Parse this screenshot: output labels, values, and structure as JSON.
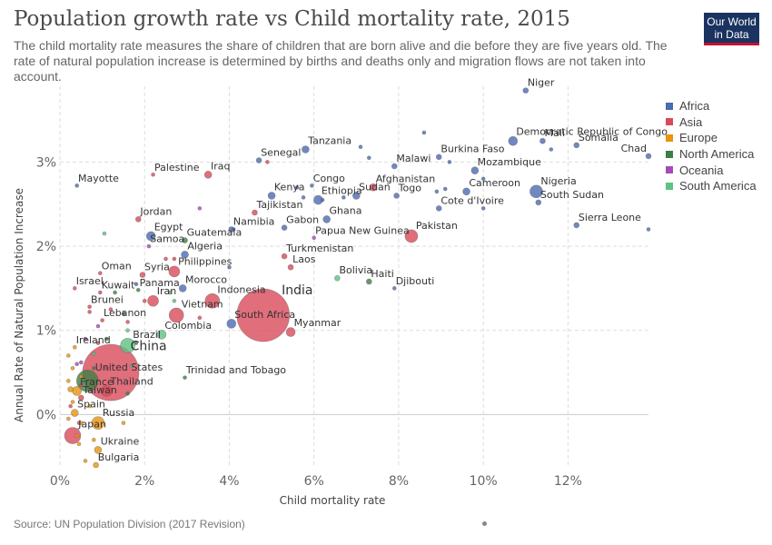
{
  "title": "Population growth rate vs Child mortality rate, 2015",
  "subtitle": "The child mortality rate measures the share of children that are born alive and die before they are five years old. The rate of natural population increase is determined by births and deaths only and migration flows are not taken into account.",
  "logo": {
    "line1": "Our World",
    "line2": "in Data",
    "bg": "#1a3360",
    "accent": "#c8102e"
  },
  "source": "Source: UN Population Division (2017 Revision)",
  "chart_data": {
    "type": "scatter",
    "xlabel": "Child mortality rate",
    "ylabel": "Annual Rate of Natural Population Increase",
    "xlim": [
      0,
      13.9
    ],
    "ylim": [
      -0.6,
      3.9
    ],
    "x_ticks": [
      0,
      2,
      4,
      6,
      8,
      10,
      12
    ],
    "y_ticks": [
      0,
      1,
      2,
      3
    ],
    "x_tick_labels": [
      "0%",
      "2%",
      "4%",
      "6%",
      "8%",
      "10%",
      "12%"
    ],
    "y_tick_labels": [
      "0%",
      "1%",
      "2%",
      "3%"
    ],
    "grid": true,
    "legend": {
      "position": "right",
      "items": [
        {
          "name": "Africa",
          "color": "#4c6ab1"
        },
        {
          "name": "Asia",
          "color": "#d84a5a"
        },
        {
          "name": "Europe",
          "color": "#e8940c"
        },
        {
          "name": "North America",
          "color": "#3e7f43"
        },
        {
          "name": "Oceania",
          "color": "#a54ab8"
        },
        {
          "name": "South America",
          "color": "#5ec282"
        }
      ]
    },
    "points": [
      {
        "label": "Niger",
        "region": "Africa",
        "x": 11.0,
        "y": 3.85,
        "size": 3
      },
      {
        "label": "Democratic Republic of Congo",
        "region": "Africa",
        "x": 10.7,
        "y": 3.25,
        "size": 5
      },
      {
        "label": "Mali",
        "region": "Africa",
        "x": 11.4,
        "y": 3.25,
        "size": 3
      },
      {
        "label": "Somalia",
        "region": "Africa",
        "x": 12.2,
        "y": 3.2,
        "size": 3
      },
      {
        "label": "Chad",
        "region": "Africa",
        "x": 13.9,
        "y": 3.07,
        "size": 3
      },
      {
        "label": "Tanzania",
        "region": "Africa",
        "x": 5.8,
        "y": 3.15,
        "size": 4
      },
      {
        "label": "Senegal",
        "region": "Africa",
        "x": 4.7,
        "y": 3.02,
        "size": 3
      },
      {
        "label": "Burkina Faso",
        "region": "Africa",
        "x": 8.95,
        "y": 3.06,
        "size": 3
      },
      {
        "label": "Malawi",
        "region": "Africa",
        "x": 7.9,
        "y": 2.95,
        "size": 3
      },
      {
        "label": "Mozambique",
        "region": "Africa",
        "x": 9.8,
        "y": 2.9,
        "size": 4
      },
      {
        "label": "Palestine",
        "region": "Asia",
        "x": 2.2,
        "y": 2.85,
        "size": 2
      },
      {
        "label": "Iraq",
        "region": "Asia",
        "x": 3.5,
        "y": 2.85,
        "size": 4
      },
      {
        "label": "Mayotte",
        "region": "Africa",
        "x": 0.4,
        "y": 2.72,
        "size": 2
      },
      {
        "label": "Congo",
        "region": "Africa",
        "x": 5.95,
        "y": 2.72,
        "size": 2
      },
      {
        "label": "Afghanistan",
        "region": "Asia",
        "x": 7.4,
        "y": 2.7,
        "size": 4
      },
      {
        "label": "Kenya",
        "region": "Africa",
        "x": 5.0,
        "y": 2.6,
        "size": 4
      },
      {
        "label": "Ethiopia",
        "region": "Africa",
        "x": 6.1,
        "y": 2.55,
        "size": 5
      },
      {
        "label": "Sudan",
        "region": "Africa",
        "x": 7.0,
        "y": 2.6,
        "size": 4
      },
      {
        "label": "Togo",
        "region": "Africa",
        "x": 7.95,
        "y": 2.6,
        "size": 3
      },
      {
        "label": "Cameroon",
        "region": "Africa",
        "x": 9.6,
        "y": 2.65,
        "size": 4
      },
      {
        "label": "Nigeria",
        "region": "Africa",
        "x": 11.25,
        "y": 2.65,
        "size": 7
      },
      {
        "label": "South Sudan",
        "region": "Africa",
        "x": 11.3,
        "y": 2.52,
        "size": 3
      },
      {
        "label": "Tajikistan",
        "region": "Asia",
        "x": 4.6,
        "y": 2.4,
        "size": 3
      },
      {
        "label": "Cote d'Ivoire",
        "region": "Africa",
        "x": 8.95,
        "y": 2.45,
        "size": 3
      },
      {
        "label": "Ghana",
        "region": "Africa",
        "x": 6.3,
        "y": 2.32,
        "size": 4
      },
      {
        "label": "Jordan",
        "region": "Asia",
        "x": 1.85,
        "y": 2.32,
        "size": 3
      },
      {
        "label": "Sierra Leone",
        "region": "Africa",
        "x": 12.2,
        "y": 2.25,
        "size": 3
      },
      {
        "label": "Namibia",
        "region": "Africa",
        "x": 4.05,
        "y": 2.2,
        "size": 3
      },
      {
        "label": "Gabon",
        "region": "Africa",
        "x": 5.3,
        "y": 2.22,
        "size": 3
      },
      {
        "label": "Pakistan",
        "region": "Asia",
        "x": 8.3,
        "y": 2.12,
        "size": 7
      },
      {
        "label": "Papua New Guinea",
        "region": "Oceania",
        "x": 6.0,
        "y": 2.1,
        "size": 2
      },
      {
        "label": "Egypt",
        "region": "Africa",
        "x": 2.15,
        "y": 2.12,
        "size": 5
      },
      {
        "label": "Guatemala",
        "region": "North America",
        "x": 2.95,
        "y": 2.07,
        "size": 3
      },
      {
        "label": "Samoa",
        "region": "Oceania",
        "x": 2.1,
        "y": 2.0,
        "size": 2
      },
      {
        "label": "Algeria",
        "region": "Africa",
        "x": 2.95,
        "y": 1.9,
        "size": 4
      },
      {
        "label": "Turkmenistan",
        "region": "Asia",
        "x": 5.3,
        "y": 1.88,
        "size": 3
      },
      {
        "label": "Laos",
        "region": "Asia",
        "x": 5.45,
        "y": 1.75,
        "size": 3
      },
      {
        "label": "Philippines",
        "region": "Asia",
        "x": 2.7,
        "y": 1.7,
        "size": 6
      },
      {
        "label": "Oman",
        "region": "Asia",
        "x": 0.95,
        "y": 1.68,
        "size": 2
      },
      {
        "label": "Syria",
        "region": "Asia",
        "x": 1.95,
        "y": 1.66,
        "size": 3
      },
      {
        "label": "Bolivia",
        "region": "South America",
        "x": 6.55,
        "y": 1.62,
        "size": 3
      },
      {
        "label": "Haiti",
        "region": "North America",
        "x": 7.3,
        "y": 1.58,
        "size": 3
      },
      {
        "label": "Morocco",
        "region": "Africa",
        "x": 2.9,
        "y": 1.5,
        "size": 4
      },
      {
        "label": "Israel",
        "region": "Asia",
        "x": 0.35,
        "y": 1.5,
        "size": 2
      },
      {
        "label": "Panama",
        "region": "North America",
        "x": 1.85,
        "y": 1.48,
        "size": 2
      },
      {
        "label": "Djibouti",
        "region": "Africa",
        "x": 7.9,
        "y": 1.5,
        "size": 2
      },
      {
        "label": "Kuwait",
        "region": "Asia",
        "x": 0.95,
        "y": 1.45,
        "size": 2
      },
      {
        "label": "Iran",
        "region": "Asia",
        "x": 2.2,
        "y": 1.35,
        "size": 6
      },
      {
        "label": "Indonesia",
        "region": "Asia",
        "x": 3.6,
        "y": 1.35,
        "size": 8
      },
      {
        "label": "Brunei",
        "region": "Asia",
        "x": 0.7,
        "y": 1.28,
        "size": 2
      },
      {
        "label": "India",
        "region": "Asia",
        "x": 4.8,
        "y": 1.18,
        "size": 29
      },
      {
        "label": "Vietnam",
        "region": "Asia",
        "x": 2.75,
        "y": 1.18,
        "size": 8
      },
      {
        "label": "Lebanon",
        "region": "Asia",
        "x": 1.0,
        "y": 1.12,
        "size": 2
      },
      {
        "label": "South Africa",
        "region": "Africa",
        "x": 4.05,
        "y": 1.08,
        "size": 5
      },
      {
        "label": "Colombia",
        "region": "South America",
        "x": 2.4,
        "y": 0.95,
        "size": 5
      },
      {
        "label": "Myanmar",
        "region": "Asia",
        "x": 5.45,
        "y": 0.98,
        "size": 5
      },
      {
        "label": "Brazil",
        "region": "South America",
        "x": 1.6,
        "y": 0.82,
        "size": 8
      },
      {
        "label": "Ireland",
        "region": "Europe",
        "x": 0.35,
        "y": 0.8,
        "size": 2
      },
      {
        "label": "China",
        "region": "Asia",
        "x": 1.2,
        "y": 0.5,
        "size": 31
      },
      {
        "label": "United States",
        "region": "North America",
        "x": 0.65,
        "y": 0.4,
        "size": 12
      },
      {
        "label": "Trinidad and Tobago",
        "region": "North America",
        "x": 2.95,
        "y": 0.44,
        "size": 2
      },
      {
        "label": "France",
        "region": "Europe",
        "x": 0.4,
        "y": 0.28,
        "size": 5
      },
      {
        "label": "Thailand",
        "region": "Asia",
        "x": 1.1,
        "y": 0.28,
        "size": 6
      },
      {
        "label": "Taiwan",
        "region": "Asia",
        "x": 0.5,
        "y": 0.2,
        "size": 3
      },
      {
        "label": "Spain",
        "region": "Europe",
        "x": 0.35,
        "y": 0.02,
        "size": 4
      },
      {
        "label": "Russia",
        "region": "Europe",
        "x": 0.9,
        "y": -0.1,
        "size": 7
      },
      {
        "label": "Japan",
        "region": "Asia",
        "x": 0.3,
        "y": -0.25,
        "size": 9
      },
      {
        "label": "Ukraine",
        "region": "Europe",
        "x": 0.9,
        "y": -0.42,
        "size": 4
      },
      {
        "label": "Bulgaria",
        "region": "Europe",
        "x": 0.85,
        "y": -0.6,
        "size": 3
      },
      {
        "label": "",
        "region": "Africa",
        "x": 7.1,
        "y": 3.18,
        "size": 2
      },
      {
        "label": "",
        "region": "Africa",
        "x": 7.3,
        "y": 3.05,
        "size": 2
      },
      {
        "label": "",
        "region": "Africa",
        "x": 8.6,
        "y": 3.35,
        "size": 2
      },
      {
        "label": "",
        "region": "Africa",
        "x": 9.2,
        "y": 3.0,
        "size": 2
      },
      {
        "label": "",
        "region": "Africa",
        "x": 10.0,
        "y": 2.8,
        "size": 2
      },
      {
        "label": "",
        "region": "Africa",
        "x": 11.6,
        "y": 3.15,
        "size": 2
      },
      {
        "label": "",
        "region": "Africa",
        "x": 8.9,
        "y": 2.65,
        "size": 2
      },
      {
        "label": "",
        "region": "Africa",
        "x": 9.1,
        "y": 2.68,
        "size": 2
      },
      {
        "label": "",
        "region": "Africa",
        "x": 10.0,
        "y": 2.45,
        "size": 2
      },
      {
        "label": "",
        "region": "Africa",
        "x": 13.9,
        "y": 2.2,
        "size": 2
      },
      {
        "label": "",
        "region": "Africa",
        "x": 5.75,
        "y": 2.58,
        "size": 2
      },
      {
        "label": "",
        "region": "Africa",
        "x": 6.2,
        "y": 2.55,
        "size": 2
      },
      {
        "label": "",
        "region": "Africa",
        "x": 6.7,
        "y": 2.58,
        "size": 2
      },
      {
        "label": "",
        "region": "Africa",
        "x": 5.6,
        "y": 2.7,
        "size": 2
      },
      {
        "label": "",
        "region": "Africa",
        "x": 4.1,
        "y": 2.2,
        "size": 2
      },
      {
        "label": "",
        "region": "Africa",
        "x": 4.0,
        "y": 1.75,
        "size": 2
      },
      {
        "label": "",
        "region": "Africa",
        "x": 1.8,
        "y": 1.55,
        "size": 2
      },
      {
        "label": "",
        "region": "Asia",
        "x": 4.9,
        "y": 3.0,
        "size": 2
      },
      {
        "label": "",
        "region": "Asia",
        "x": 2.7,
        "y": 1.85,
        "size": 2
      },
      {
        "label": "",
        "region": "Asia",
        "x": 2.5,
        "y": 1.85,
        "size": 2
      },
      {
        "label": "",
        "region": "Asia",
        "x": 2.0,
        "y": 1.35,
        "size": 2
      },
      {
        "label": "",
        "region": "Asia",
        "x": 3.3,
        "y": 1.15,
        "size": 2
      },
      {
        "label": "",
        "region": "Asia",
        "x": 1.6,
        "y": 1.1,
        "size": 2
      },
      {
        "label": "",
        "region": "Asia",
        "x": 1.2,
        "y": 1.25,
        "size": 2
      },
      {
        "label": "",
        "region": "Asia",
        "x": 0.7,
        "y": 1.22,
        "size": 2
      },
      {
        "label": "",
        "region": "Asia",
        "x": 0.9,
        "y": 0.85,
        "size": 2
      },
      {
        "label": "",
        "region": "Asia",
        "x": 1.1,
        "y": 0.55,
        "size": 2
      },
      {
        "label": "",
        "region": "Asia",
        "x": 0.5,
        "y": 0.35,
        "size": 2
      },
      {
        "label": "",
        "region": "Asia",
        "x": 0.25,
        "y": 0.1,
        "size": 2
      },
      {
        "label": "",
        "region": "Asia",
        "x": 0.45,
        "y": -0.1,
        "size": 2
      },
      {
        "label": "",
        "region": "North America",
        "x": 1.3,
        "y": 1.45,
        "size": 2
      },
      {
        "label": "",
        "region": "North America",
        "x": 1.5,
        "y": 1.2,
        "size": 2
      },
      {
        "label": "",
        "region": "North America",
        "x": 1.1,
        "y": 0.9,
        "size": 2
      },
      {
        "label": "",
        "region": "North America",
        "x": 1.8,
        "y": 0.85,
        "size": 2
      },
      {
        "label": "",
        "region": "North America",
        "x": 0.8,
        "y": 0.55,
        "size": 2
      },
      {
        "label": "",
        "region": "North America",
        "x": 1.6,
        "y": 0.25,
        "size": 2
      },
      {
        "label": "",
        "region": "Oceania",
        "x": 3.3,
        "y": 2.45,
        "size": 2
      },
      {
        "label": "",
        "region": "Oceania",
        "x": 0.6,
        "y": 0.9,
        "size": 2
      },
      {
        "label": "",
        "region": "Oceania",
        "x": 0.4,
        "y": 0.6,
        "size": 2
      },
      {
        "label": "",
        "region": "Oceania",
        "x": 0.5,
        "y": 0.62,
        "size": 2
      },
      {
        "label": "",
        "region": "Oceania",
        "x": 0.9,
        "y": 1.05,
        "size": 2
      },
      {
        "label": "",
        "region": "South America",
        "x": 1.05,
        "y": 2.15,
        "size": 2
      },
      {
        "label": "",
        "region": "South America",
        "x": 2.6,
        "y": 1.45,
        "size": 2
      },
      {
        "label": "",
        "region": "South America",
        "x": 2.7,
        "y": 1.35,
        "size": 2
      },
      {
        "label": "",
        "region": "South America",
        "x": 1.6,
        "y": 1.0,
        "size": 2
      },
      {
        "label": "",
        "region": "South America",
        "x": 0.8,
        "y": 0.72,
        "size": 2
      },
      {
        "label": "",
        "region": "South America",
        "x": 1.7,
        "y": 0.58,
        "size": 2
      },
      {
        "label": "",
        "region": "Europe",
        "x": 0.2,
        "y": 0.7,
        "size": 2
      },
      {
        "label": "",
        "region": "Europe",
        "x": 0.3,
        "y": 0.55,
        "size": 2
      },
      {
        "label": "",
        "region": "Europe",
        "x": 0.2,
        "y": 0.4,
        "size": 2
      },
      {
        "label": "",
        "region": "Europe",
        "x": 0.25,
        "y": 0.3,
        "size": 3
      },
      {
        "label": "",
        "region": "Europe",
        "x": 0.5,
        "y": 0.45,
        "size": 2
      },
      {
        "label": "",
        "region": "Europe",
        "x": 0.3,
        "y": 0.15,
        "size": 2
      },
      {
        "label": "",
        "region": "Europe",
        "x": 0.2,
        "y": -0.05,
        "size": 2
      },
      {
        "label": "",
        "region": "Europe",
        "x": 0.4,
        "y": -0.25,
        "size": 2
      },
      {
        "label": "",
        "region": "Europe",
        "x": 0.45,
        "y": -0.35,
        "size": 2
      },
      {
        "label": "",
        "region": "Europe",
        "x": 0.6,
        "y": -0.55,
        "size": 2
      },
      {
        "label": "",
        "region": "Europe",
        "x": 0.8,
        "y": -0.3,
        "size": 2
      },
      {
        "label": "",
        "region": "Europe",
        "x": 0.7,
        "y": 0.1,
        "size": 2
      },
      {
        "label": "",
        "region": "Europe",
        "x": 1.5,
        "y": -0.1,
        "size": 2
      },
      {
        "label": "",
        "region": "Europe",
        "x": 0.5,
        "y": -0.1,
        "size": 2
      }
    ]
  }
}
